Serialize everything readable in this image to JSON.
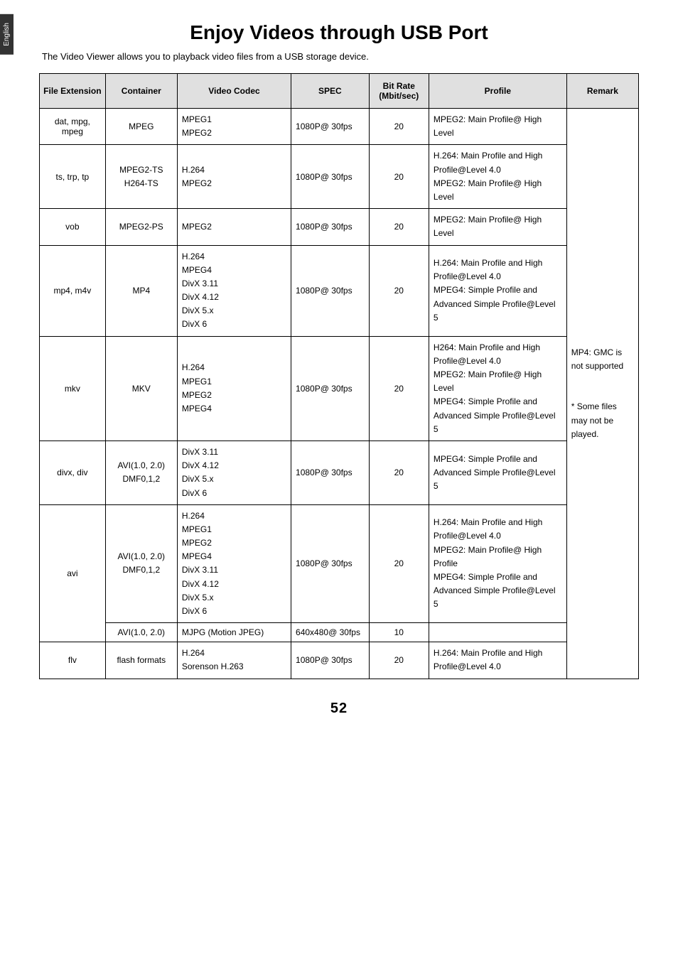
{
  "lang_tab": "English",
  "title": "Enjoy Videos through USB Port",
  "subtitle": "The Video Viewer allows you to playback video files from a USB storage device.",
  "headers": {
    "ext": "File Extension",
    "container": "Container",
    "codec": "Video Codec",
    "spec": "SPEC",
    "bitrate": "Bit Rate (Mbit/sec)",
    "profile": "Profile",
    "remark": "Remark"
  },
  "rows": {
    "r1": {
      "ext": "dat, mpg, mpeg",
      "container": "MPEG",
      "codec": "MPEG1\nMPEG2",
      "spec": "1080P@ 30fps",
      "bitrate": "20",
      "profile": "MPEG2: Main Profile@ High Level"
    },
    "r2": {
      "ext": "ts, trp, tp",
      "container": "MPEG2-TS\nH264-TS",
      "codec": "H.264\nMPEG2",
      "spec": "1080P@ 30fps",
      "bitrate": "20",
      "profile": "H.264: Main Profile and High Profile@Level 4.0\nMPEG2: Main Profile@ High Level"
    },
    "r3": {
      "ext": "vob",
      "container": "MPEG2-PS",
      "codec": "MPEG2",
      "spec": "1080P@ 30fps",
      "bitrate": "20",
      "profile": "MPEG2: Main Profile@ High Level"
    },
    "r4": {
      "ext": "mp4, m4v",
      "container": "MP4",
      "codec": "H.264\nMPEG4\nDivX 3.11\nDivX 4.12\nDivX 5.x\nDivX 6",
      "spec": "1080P@ 30fps",
      "bitrate": "20",
      "profile": "H.264: Main Profile and High Profile@Level 4.0\nMPEG4: Simple Profile and Advanced Simple Profile@Level 5"
    },
    "r5": {
      "ext": "mkv",
      "container": "MKV",
      "codec": "H.264\nMPEG1\nMPEG2\nMPEG4",
      "spec": "1080P@ 30fps",
      "bitrate": "20",
      "profile": "H264: Main Profile and High Profile@Level 4.0\nMPEG2: Main Profile@ High Level\nMPEG4: Simple Profile and Advanced Simple Profile@Level 5"
    },
    "r6": {
      "ext": "divx, div",
      "container": "AVI(1.0, 2.0)\nDMF0,1,2",
      "codec": "DivX 3.11\nDivX 4.12\nDivX 5.x\nDivX 6",
      "spec": "1080P@ 30fps",
      "bitrate": "20",
      "profile": "MPEG4: Simple Profile and Advanced Simple Profile@Level 5"
    },
    "r7a": {
      "ext": "avi",
      "container": "AVI(1.0, 2.0)\nDMF0,1,2",
      "codec": "H.264\nMPEG1\nMPEG2\nMPEG4\nDivX 3.11\nDivX 4.12\nDivX 5.x\nDivX 6",
      "spec": "1080P@ 30fps",
      "bitrate": "20",
      "profile": "H.264: Main Profile and High Profile@Level 4.0\nMPEG2: Main Profile@ High Profile\nMPEG4: Simple Profile and Advanced Simple Profile@Level 5"
    },
    "r7b": {
      "container": "AVI(1.0, 2.0)",
      "codec": "MJPG (Motion JPEG)",
      "spec": "640x480@ 30fps",
      "bitrate": "10",
      "profile": ""
    },
    "r8": {
      "ext": "flv",
      "container": "flash formats",
      "codec": "H.264\nSorenson H.263",
      "spec": "1080P@ 30fps",
      "bitrate": "20",
      "profile": "H.264: Main Profile and High Profile@Level 4.0"
    }
  },
  "remark": "MP4: GMC is not supported\n\n* Some files may not be played.",
  "page_number": "52"
}
